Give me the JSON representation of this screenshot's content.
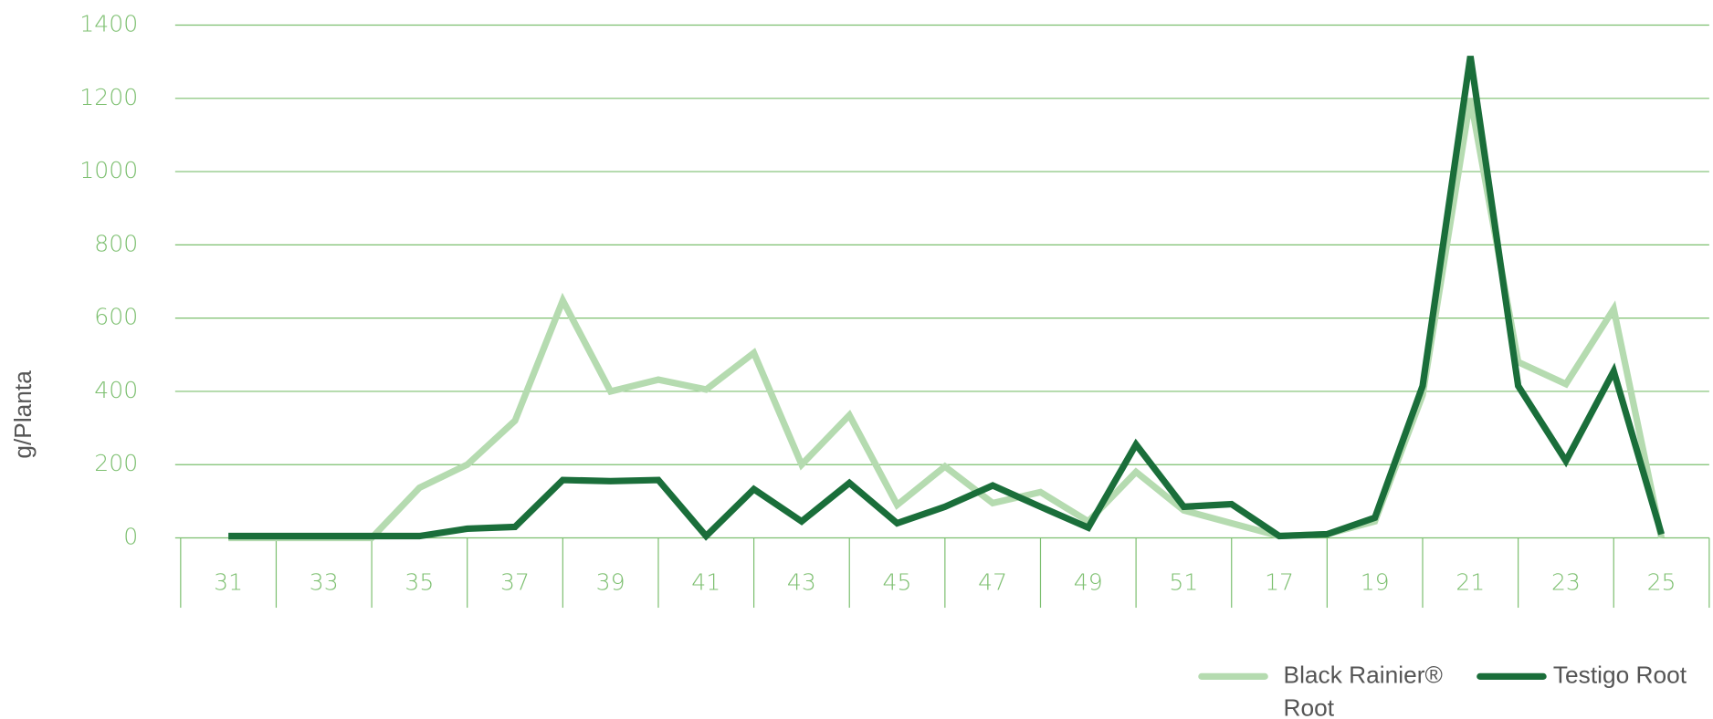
{
  "chart_data": {
    "type": "line",
    "y_label": "g/Planta",
    "categories": [
      "31",
      null,
      "33",
      null,
      "35",
      null,
      "37",
      null,
      "39",
      null,
      "41",
      null,
      "43",
      null,
      "45",
      null,
      "47",
      null,
      "49",
      null,
      "51",
      null,
      "17",
      null,
      "19",
      null,
      "21",
      null,
      "23",
      null,
      "25"
    ],
    "series": [
      {
        "name": "Black Rainier® Root",
        "color": "#b5dbb0",
        "values": [
          0,
          0,
          0,
          0,
          137,
          200,
          320,
          648,
          400,
          432,
          405,
          505,
          200,
          335,
          90,
          195,
          95,
          125,
          45,
          180,
          75,
          40,
          5,
          10,
          45,
          390,
          1200,
          480,
          420,
          625,
          0
        ]
      },
      {
        "name": "Testigo Root",
        "color": "#1a6e3a",
        "values": [
          5,
          5,
          5,
          5,
          5,
          25,
          30,
          158,
          155,
          158,
          5,
          133,
          45,
          150,
          40,
          85,
          143,
          85,
          28,
          255,
          85,
          92,
          5,
          10,
          55,
          415,
          1315,
          415,
          210,
          455,
          10
        ]
      }
    ],
    "ylim": [
      0,
      1400
    ],
    "yticks": [
      0,
      200,
      400,
      600,
      800,
      1000,
      1200,
      1400
    ],
    "grid": true,
    "legend": "bottom-right"
  }
}
